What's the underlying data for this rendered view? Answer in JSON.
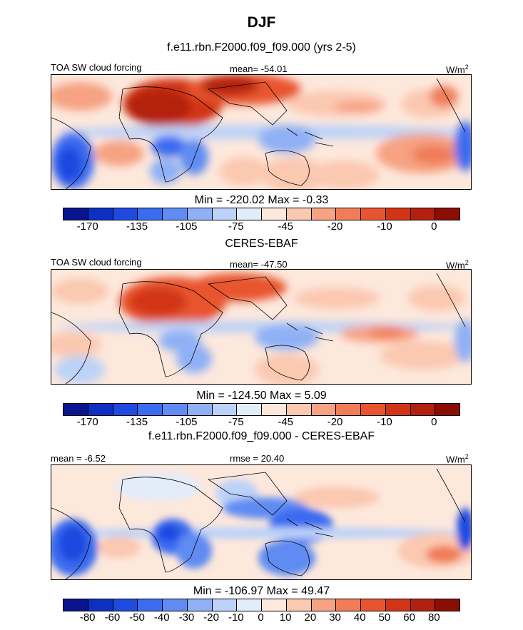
{
  "figure": {
    "title": "DJF",
    "panel1_heading": "f.e11.rbn.F2000.f09_f09.000 (yrs 2-5)",
    "panel2_heading": "CERES-EBAF",
    "panel3_heading": "f.e11.rbn.F2000.f09_f09.000 - CERES-EBAF"
  },
  "chart_data": [
    {
      "type": "heatmap",
      "title": "f.e11.rbn.F2000.f09_f09.000 (yrs 2-5)",
      "variable": "TOA SW cloud forcing",
      "stat_label": "mean= -54.01",
      "units": "W/m",
      "units_exp": "2",
      "min_max": "Min = -220.02 Max =  -0.33",
      "colorbar_ticks": [
        "-170",
        "-135",
        "-105",
        "-75",
        "-45",
        "-20",
        "-10",
        "0"
      ],
      "colors": [
        "#08158f",
        "#0d2fc2",
        "#1f4ae0",
        "#3b6cf0",
        "#5f8bf2",
        "#8fb0f5",
        "#bcd2f8",
        "#e2ecfb",
        "#fde8dc",
        "#fbc8b0",
        "#f6a283",
        "#f07d58",
        "#e8542f",
        "#d23416",
        "#b42010",
        "#8a0d06"
      ]
    },
    {
      "type": "heatmap",
      "title": "CERES-EBAF",
      "variable": "TOA SW cloud forcing",
      "stat_label": "mean= -47.50",
      "units": "W/m",
      "units_exp": "2",
      "min_max": "Min = -124.50 Max =   5.09",
      "colorbar_ticks": [
        "-170",
        "-135",
        "-105",
        "-75",
        "-45",
        "-20",
        "-10",
        "0"
      ],
      "colors": [
        "#08158f",
        "#0d2fc2",
        "#1f4ae0",
        "#3b6cf0",
        "#5f8bf2",
        "#8fb0f5",
        "#bcd2f8",
        "#e2ecfb",
        "#fde8dc",
        "#fbc8b0",
        "#f6a283",
        "#f07d58",
        "#e8542f",
        "#d23416",
        "#b42010",
        "#8a0d06"
      ]
    },
    {
      "type": "heatmap",
      "title": "f.e11.rbn.F2000.f09_f09.000 - CERES-EBAF",
      "stat_label_left": "mean =  -6.52",
      "stat_label": "rmse =  20.40",
      "units": "W/m",
      "units_exp": "2",
      "min_max": "Min = -106.97 Max =  49.47",
      "colorbar_ticks": [
        "-80",
        "-60",
        "-50",
        "-40",
        "-30",
        "-20",
        "-10",
        "0",
        "10",
        "20",
        "30",
        "40",
        "50",
        "60",
        "80"
      ],
      "colors": [
        "#08158f",
        "#0d2fc2",
        "#1f4ae0",
        "#3b6cf0",
        "#5f8bf2",
        "#8fb0f5",
        "#bcd2f8",
        "#e2ecfb",
        "#fde8dc",
        "#fbc8b0",
        "#f6a283",
        "#f07d58",
        "#e8542f",
        "#d23416",
        "#b42010",
        "#8a0d06"
      ]
    }
  ]
}
